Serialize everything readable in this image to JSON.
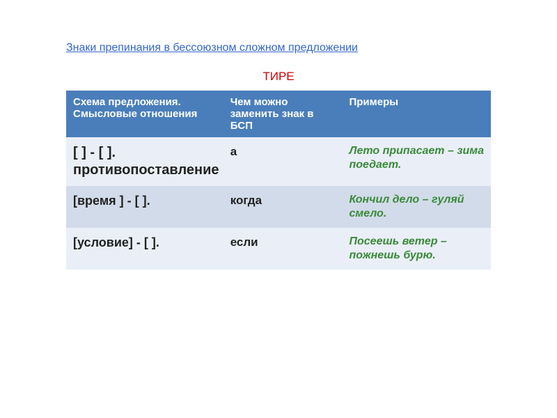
{
  "title": "Знаки препинания в бессоюзном сложном предложении",
  "subtitle": "ТИРЕ",
  "colors": {
    "title_link": "#3366cc",
    "subtitle": "#cc0000",
    "header_bg": "#4a7ebb",
    "header_fg": "#ffffff",
    "row_light": "#eaeff7",
    "row_dark": "#d2dbe9",
    "schema_text": "#222222",
    "example_text": "#3a8a3a"
  },
  "table": {
    "columns": [
      "Схема предложения. Смысловые отношения",
      "Чем можно заменить знак в БСП",
      "Примеры"
    ],
    "rows": [
      {
        "schema": "[ ] - [ ]. противопоставление",
        "replace": "а",
        "example": "Лето припасает – зима поедает."
      },
      {
        "schema": "[время ] - [ ].",
        "replace": "когда",
        "example": "Кончил дело – гуляй смело."
      },
      {
        "schema": "[условие] - [ ].",
        "replace": "если",
        "example": "Посеешь ветер – пожнешь бурю."
      }
    ]
  }
}
